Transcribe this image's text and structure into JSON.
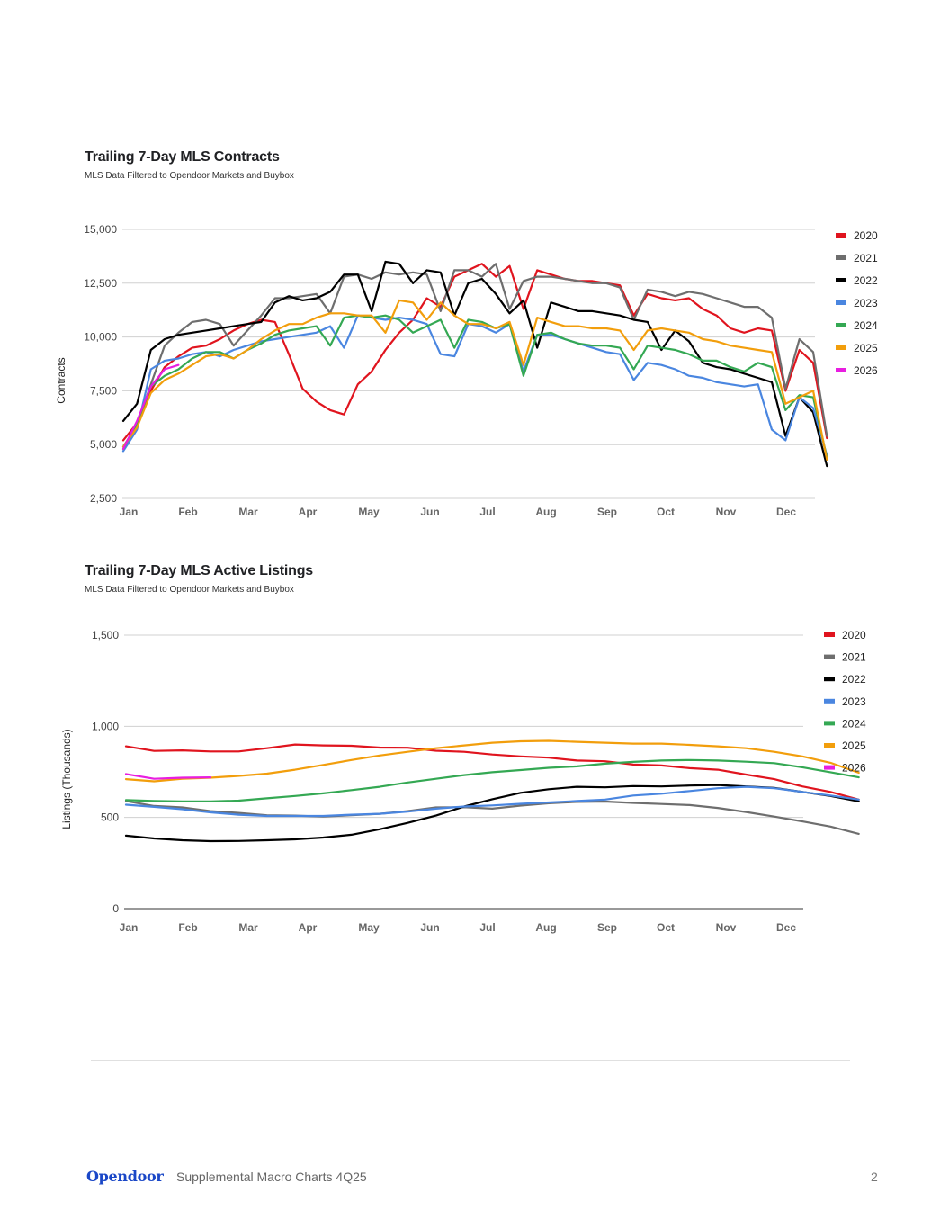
{
  "footer": {
    "brand": "Opendoor",
    "doc_title": "Supplemental Macro Charts 4Q25",
    "page_number": "2"
  },
  "colors": {
    "2020": "#e0141e",
    "2021": "#6e6e6e",
    "2022": "#000000",
    "2023": "#4a86e0",
    "2024": "#34a853",
    "2025": "#f29e0c",
    "2026": "#e81ee0"
  },
  "chart_data": [
    {
      "type": "line",
      "title": "Trailing 7-Day MLS Contracts",
      "subtitle": "MLS Data Filtered to Opendoor Markets and Buybox",
      "xlabel": "",
      "ylabel": "Contracts",
      "x_unit": "week of year",
      "x_ticks": [
        "Jan",
        "Feb",
        "Mar",
        "Apr",
        "May",
        "Jun",
        "Jul",
        "Aug",
        "Sep",
        "Oct",
        "Nov",
        "Dec"
      ],
      "y_ticks": [
        "2,500",
        "5,000",
        "7,500",
        "10,000",
        "12,500",
        "15,000"
      ],
      "ylim": [
        2500,
        15000
      ],
      "xlim": [
        0,
        50
      ],
      "grid": true,
      "legend_position": "right",
      "series": [
        {
          "name": "2020",
          "values": [
            5200,
            6000,
            7500,
            8600,
            9100,
            9500,
            9600,
            9900,
            10300,
            10600,
            10800,
            10700,
            9200,
            7600,
            7000,
            6600,
            6400,
            7800,
            8400,
            9400,
            10200,
            10800,
            11800,
            11400,
            12800,
            13100,
            13400,
            12800,
            13300,
            11300,
            13100,
            12900,
            12700,
            12600,
            12600,
            12500,
            12400,
            11000,
            12000,
            11800,
            11700,
            11800,
            11300,
            11000,
            10400,
            10200,
            10400,
            10300,
            7500,
            9400,
            8800,
            5300
          ]
        },
        {
          "name": "2021",
          "values": [
            4900,
            5900,
            7800,
            9600,
            10200,
            10700,
            10800,
            10600,
            9600,
            10300,
            11000,
            11800,
            11800,
            11900,
            12000,
            11100,
            12800,
            12900,
            12700,
            13000,
            12900,
            13000,
            12900,
            11200,
            13100,
            13100,
            12800,
            13400,
            11300,
            12600,
            12800,
            12800,
            12700,
            12600,
            12500,
            12500,
            12300,
            10800,
            12200,
            12100,
            11900,
            12100,
            12000,
            11800,
            11600,
            11400,
            11400,
            10900,
            7600,
            9900,
            9300,
            5400
          ]
        },
        {
          "name": "2022",
          "values": [
            6100,
            6900,
            9400,
            9900,
            10100,
            10200,
            10300,
            10400,
            10500,
            10600,
            10700,
            11600,
            11900,
            11700,
            11800,
            12100,
            12900,
            12900,
            11200,
            13500,
            13400,
            12500,
            13100,
            13000,
            11000,
            12500,
            12700,
            12000,
            11100,
            11700,
            9500,
            11600,
            11400,
            11200,
            11200,
            11100,
            11000,
            10800,
            10700,
            9400,
            10300,
            9800,
            8800,
            8600,
            8500,
            8300,
            8100,
            7900,
            5400,
            7200,
            6500,
            4000
          ]
        },
        {
          "name": "2023",
          "values": [
            4700,
            5700,
            8500,
            8900,
            9000,
            9200,
            9300,
            9100,
            9400,
            9600,
            9800,
            9900,
            10000,
            10100,
            10200,
            10500,
            9500,
            11000,
            10900,
            10800,
            10900,
            10800,
            10600,
            9200,
            9100,
            10600,
            10500,
            10200,
            10600,
            8400,
            10100,
            10100,
            9900,
            9700,
            9500,
            9300,
            9200,
            8000,
            8800,
            8700,
            8500,
            8200,
            8100,
            7900,
            7800,
            7700,
            7800,
            5700,
            5200,
            7200,
            6700,
            4500
          ]
        },
        {
          "name": "2024",
          "values": [
            4800,
            6000,
            7700,
            8200,
            8500,
            9000,
            9300,
            9300,
            9000,
            9400,
            9700,
            10100,
            10300,
            10400,
            10500,
            9600,
            10900,
            11000,
            10900,
            11000,
            10800,
            10200,
            10500,
            10800,
            9500,
            10800,
            10700,
            10400,
            10600,
            8200,
            10100,
            10200,
            9900,
            9700,
            9600,
            9600,
            9500,
            8500,
            9600,
            9500,
            9400,
            9200,
            8900,
            8900,
            8600,
            8400,
            8800,
            8600,
            6600,
            7300,
            7200,
            4400
          ]
        },
        {
          "name": "2025",
          "values": [
            4900,
            5800,
            7400,
            8000,
            8300,
            8700,
            9100,
            9200,
            9000,
            9400,
            9900,
            10300,
            10600,
            10600,
            10900,
            11100,
            11100,
            11000,
            11000,
            10200,
            11700,
            11600,
            10800,
            11600,
            11000,
            10600,
            10600,
            10400,
            10700,
            8700,
            10900,
            10700,
            10500,
            10500,
            10400,
            10400,
            10300,
            9400,
            10300,
            10400,
            10300,
            10200,
            9900,
            9800,
            9600,
            9500,
            9400,
            9300,
            6900,
            7200,
            7500,
            4300
          ]
        },
        {
          "name": "2026",
          "values": [
            4800,
            6100,
            7700,
            8500,
            8700
          ]
        }
      ]
    },
    {
      "type": "line",
      "title": "Trailing 7-Day MLS Active Listings",
      "subtitle": "MLS Data Filtered to Opendoor Markets and Buybox",
      "xlabel": "",
      "ylabel": "Listings (Thousands)",
      "x_unit": "half-month of year",
      "x_ticks": [
        "Jan",
        "Feb",
        "Mar",
        "Apr",
        "May",
        "Jun",
        "Jul",
        "Aug",
        "Sep",
        "Oct",
        "Nov",
        "Dec"
      ],
      "y_ticks": [
        "0",
        "500",
        "1,000",
        "1,500"
      ],
      "ylim": [
        0,
        1500
      ],
      "xlim": [
        0,
        24
      ],
      "grid": true,
      "legend_position": "right",
      "series": [
        {
          "name": "2020",
          "values": [
            890,
            865,
            868,
            862,
            862,
            880,
            900,
            895,
            893,
            883,
            882,
            866,
            860,
            845,
            835,
            828,
            812,
            808,
            790,
            785,
            770,
            762,
            735,
            710,
            670,
            640,
            598
          ]
        },
        {
          "name": "2021",
          "values": [
            590,
            563,
            555,
            535,
            525,
            512,
            510,
            505,
            512,
            520,
            535,
            555,
            556,
            548,
            565,
            578,
            585,
            587,
            580,
            574,
            568,
            552,
            530,
            505,
            478,
            450,
            410
          ]
        },
        {
          "name": "2022",
          "values": [
            400,
            385,
            375,
            370,
            371,
            375,
            380,
            390,
            405,
            435,
            470,
            510,
            560,
            600,
            635,
            655,
            668,
            665,
            672,
            670,
            675,
            678,
            670,
            662,
            640,
            618,
            588
          ]
        },
        {
          "name": "2023",
          "values": [
            570,
            558,
            545,
            528,
            515,
            508,
            508,
            508,
            515,
            520,
            532,
            548,
            560,
            566,
            575,
            582,
            590,
            598,
            620,
            630,
            645,
            660,
            668,
            660,
            640,
            620,
            598
          ]
        },
        {
          "name": "2024",
          "values": [
            595,
            590,
            588,
            588,
            592,
            605,
            618,
            632,
            650,
            668,
            692,
            712,
            732,
            748,
            760,
            772,
            780,
            795,
            805,
            812,
            815,
            812,
            806,
            798,
            775,
            748,
            720
          ]
        },
        {
          "name": "2025",
          "values": [
            710,
            698,
            712,
            718,
            728,
            740,
            762,
            788,
            815,
            840,
            860,
            880,
            895,
            910,
            918,
            920,
            915,
            910,
            905,
            905,
            898,
            890,
            880,
            860,
            835,
            800,
            745
          ]
        },
        {
          "name": "2026",
          "values": [
            738,
            712,
            718,
            720
          ]
        }
      ]
    }
  ]
}
